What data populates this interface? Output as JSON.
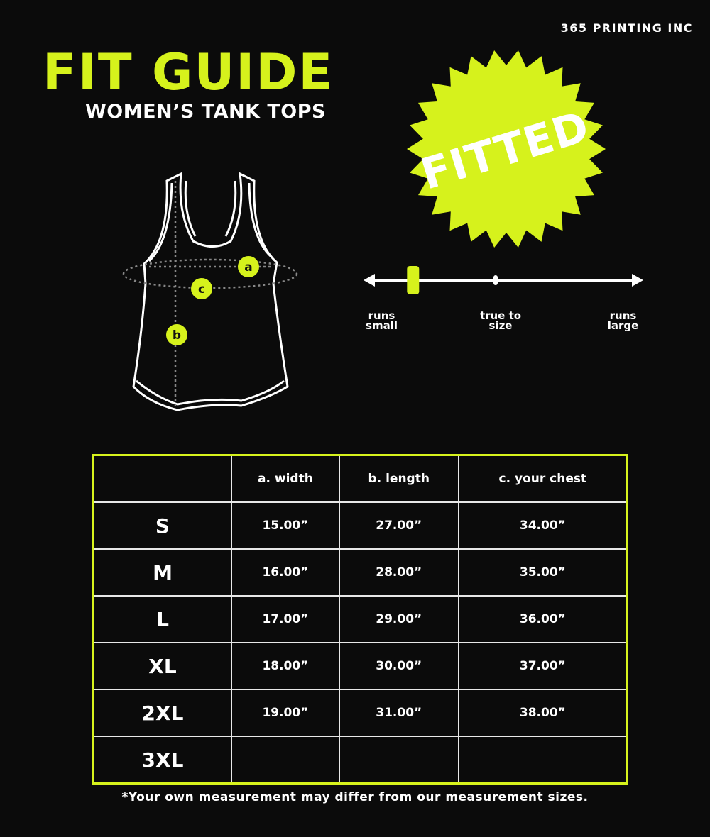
{
  "brand": "365 PRINTING INC",
  "title": "FIT GUIDE",
  "subtitle": "WOMEN’S TANK TOPS",
  "badge": "FITTED",
  "accent_color": "#d6f21c",
  "diagram": {
    "markers": [
      "a",
      "b",
      "c"
    ]
  },
  "fit_scale": {
    "labels": [
      "runs small",
      "true to size",
      "runs large"
    ],
    "position_fraction": 0.17
  },
  "table": {
    "headers": [
      "",
      "a. width",
      "b. length",
      "c. your chest"
    ],
    "rows": [
      [
        "S",
        "15.00”",
        "27.00”",
        "34.00”"
      ],
      [
        "M",
        "16.00”",
        "28.00”",
        "35.00”"
      ],
      [
        "L",
        "17.00”",
        "29.00”",
        "36.00”"
      ],
      [
        "XL",
        "18.00”",
        "30.00”",
        "37.00”"
      ],
      [
        "2XL",
        "19.00”",
        "31.00”",
        "38.00”"
      ],
      [
        "3XL",
        "",
        "",
        ""
      ]
    ]
  },
  "footnote": "*Your own measurement may differ from our measurement sizes."
}
